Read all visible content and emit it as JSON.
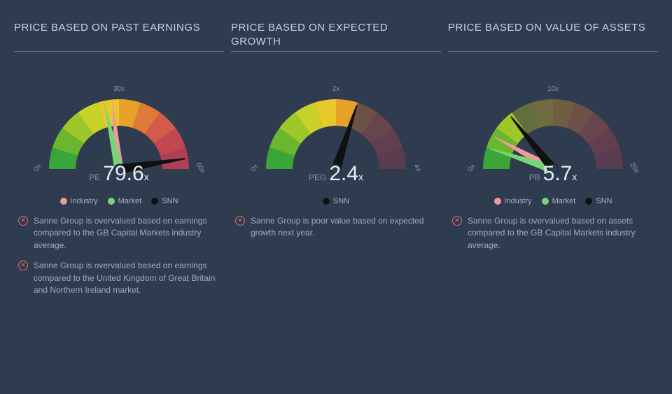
{
  "background_color": "#2f3b4e",
  "text_color": "#b8c4d4",
  "gauge_colors": [
    "#3aa63a",
    "#6ab72f",
    "#9ec82a",
    "#c9d228",
    "#e8c82a",
    "#e8a22a",
    "#e07a3a",
    "#d45a4a",
    "#c34750",
    "#ad4057"
  ],
  "gauge_band_opacity_default": 0.35,
  "needle_colors": {
    "industry": "#f09a9a",
    "market": "#7ad47a",
    "snn": "#111111"
  },
  "legend_colors": {
    "industry": "#f09a9a",
    "market": "#7ad47a",
    "snn": "#111111"
  },
  "panels": [
    {
      "title": "PRICE BASED ON PAST EARNINGS",
      "scale": {
        "min": 0,
        "mid": 30,
        "max": 60,
        "unit": "x"
      },
      "active_segments": 10,
      "metric": {
        "name": "PE",
        "value": "79.6",
        "suffix": "x"
      },
      "needles": [
        {
          "key": "industry",
          "fraction": 0.47,
          "width": 3
        },
        {
          "key": "market",
          "fraction": 0.43,
          "width": 3
        },
        {
          "key": "snn",
          "fraction": 0.95,
          "width": 6
        }
      ],
      "legend": [
        {
          "key": "industry",
          "label": "Industry"
        },
        {
          "key": "market",
          "label": "Market"
        },
        {
          "key": "snn",
          "label": "SNN"
        }
      ],
      "notes": [
        "Sanne Group is overvalued based on earnings compared to the GB Capital Markets industry average.",
        "Sanne Group is overvalued based on earnings compared to the United Kingdom of Great Britain and Northern Ireland market."
      ]
    },
    {
      "title": "PRICE BASED ON EXPECTED GROWTH",
      "scale": {
        "min": 0,
        "mid": 2,
        "max": 4,
        "unit": "x"
      },
      "active_segments": 6,
      "metric": {
        "name": "PEG",
        "value": "2.4",
        "suffix": "x"
      },
      "needles": [
        {
          "key": "snn",
          "fraction": 0.6,
          "width": 6
        }
      ],
      "legend": [
        {
          "key": "snn",
          "label": "SNN"
        }
      ],
      "notes": [
        "Sanne Group is poor value based on expected growth next year."
      ]
    },
    {
      "title": "PRICE BASED ON VALUE OF ASSETS",
      "scale": {
        "min": 0,
        "mid": 10,
        "max": 20,
        "unit": "x"
      },
      "active_segments": 3,
      "metric": {
        "name": "PB",
        "value": "5.7",
        "suffix": "x"
      },
      "needles": [
        {
          "key": "industry",
          "fraction": 0.16,
          "width": 3
        },
        {
          "key": "market",
          "fraction": 0.1,
          "width": 3
        },
        {
          "key": "snn",
          "fraction": 0.285,
          "width": 6
        }
      ],
      "legend": [
        {
          "key": "industry",
          "label": "Industry"
        },
        {
          "key": "market",
          "label": "Market"
        },
        {
          "key": "snn",
          "label": "SNN"
        }
      ],
      "notes": [
        "Sanne Group is overvalued based on assets compared to the GB Capital Markets industry average."
      ]
    }
  ]
}
